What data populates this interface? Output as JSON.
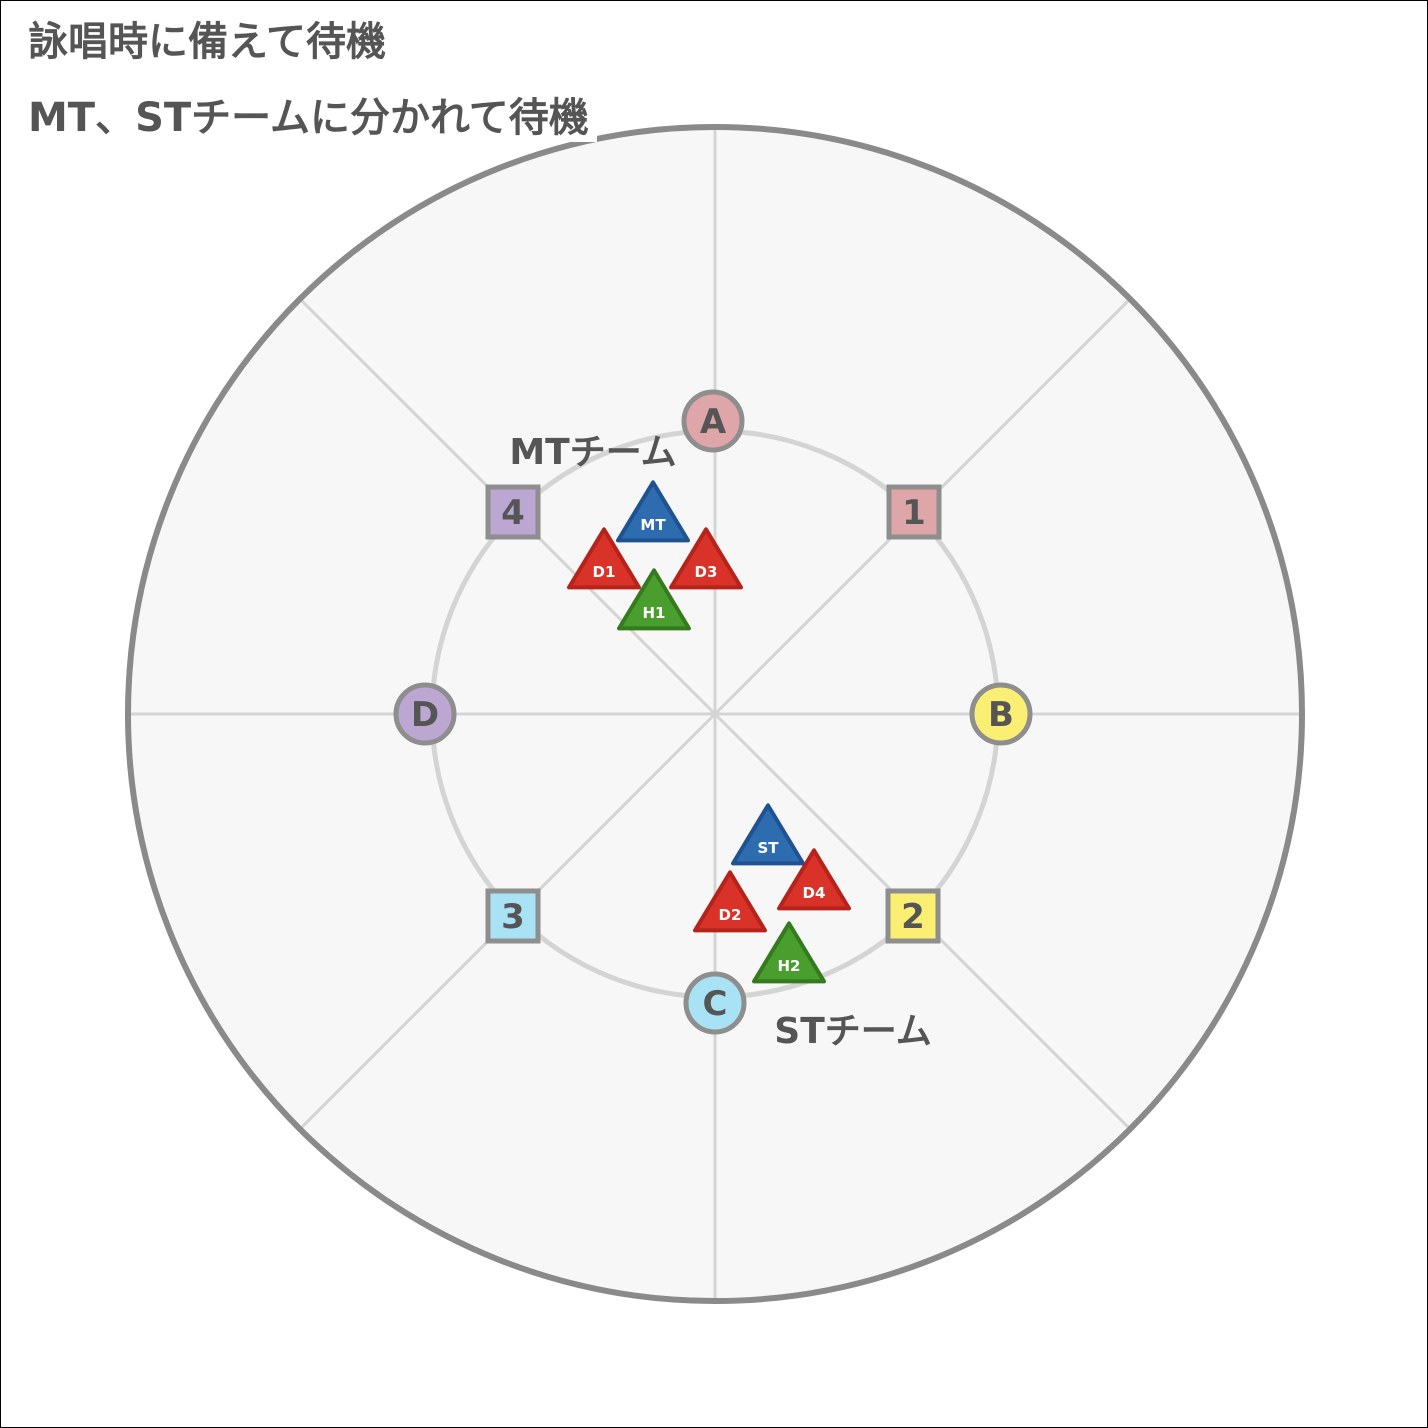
{
  "titles": {
    "line1": "詠唱時に備えて待機",
    "line2": "MT、STチームに分かれて待機"
  },
  "colors": {
    "arena_fill": "#f7f7f7",
    "arena_border": "#8a8a8a",
    "grid_line": "#d4d4d4",
    "inner_ring": "#d4d4d4",
    "text": "#555555",
    "tank": "#2e6cb0",
    "dps": "#d93228",
    "healer": "#4a9e2d"
  },
  "waymarks": [
    {
      "id": "A",
      "shape": "circle",
      "fill": "#dea6a8",
      "label": "A"
    },
    {
      "id": "B",
      "shape": "circle",
      "fill": "#fbef73",
      "label": "B"
    },
    {
      "id": "C",
      "shape": "circle",
      "fill": "#a9e2f5",
      "label": "C"
    },
    {
      "id": "D",
      "shape": "circle",
      "fill": "#bba7d2",
      "label": "D"
    },
    {
      "id": "1",
      "shape": "square",
      "fill": "#dea6a8",
      "label": "1"
    },
    {
      "id": "2",
      "shape": "square",
      "fill": "#fbef73",
      "label": "2"
    },
    {
      "id": "3",
      "shape": "square",
      "fill": "#a9e2f5",
      "label": "3"
    },
    {
      "id": "4",
      "shape": "square",
      "fill": "#bba7d2",
      "label": "4"
    }
  ],
  "players": [
    {
      "id": "MT",
      "role": "tank",
      "label": "MT"
    },
    {
      "id": "D1",
      "role": "dps",
      "label": "D1"
    },
    {
      "id": "D3",
      "role": "dps",
      "label": "D3"
    },
    {
      "id": "H1",
      "role": "healer",
      "label": "H1"
    },
    {
      "id": "ST",
      "role": "tank",
      "label": "ST"
    },
    {
      "id": "D2",
      "role": "dps",
      "label": "D2"
    },
    {
      "id": "D4",
      "role": "dps",
      "label": "D4"
    },
    {
      "id": "H2",
      "role": "healer",
      "label": "H2"
    }
  ],
  "teams": [
    {
      "id": "mt-team",
      "label": "MTチーム"
    },
    {
      "id": "st-team",
      "label": "STチーム"
    }
  ]
}
